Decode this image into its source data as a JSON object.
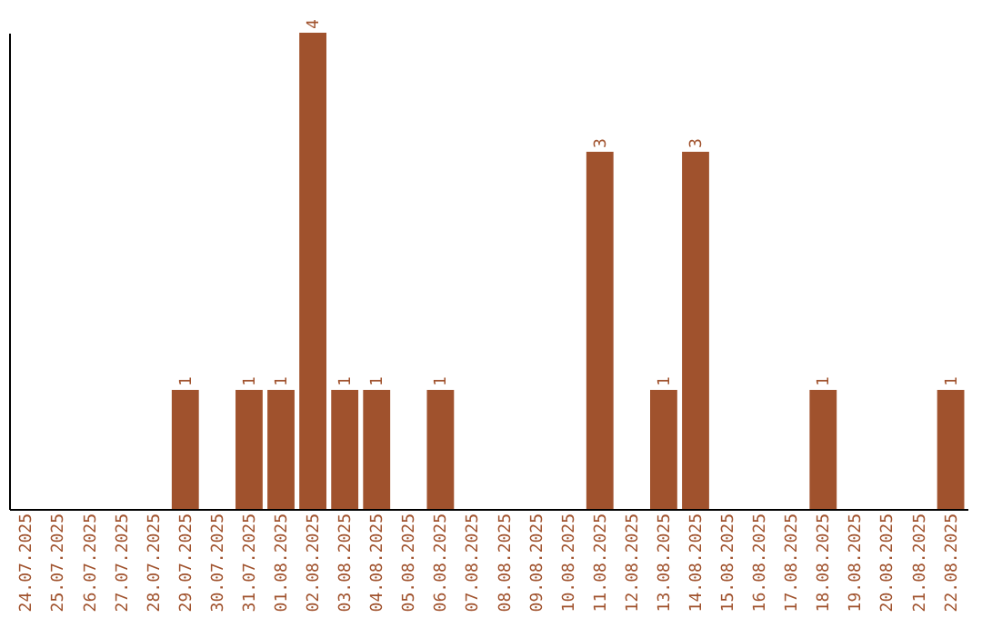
{
  "chart_data": {
    "type": "bar",
    "categories": [
      "24.07.2025",
      "25.07.2025",
      "26.07.2025",
      "27.07.2025",
      "28.07.2025",
      "29.07.2025",
      "30.07.2025",
      "31.07.2025",
      "01.08.2025",
      "02.08.2025",
      "03.08.2025",
      "04.08.2025",
      "05.08.2025",
      "06.08.2025",
      "07.08.2025",
      "08.08.2025",
      "09.08.2025",
      "10.08.2025",
      "11.08.2025",
      "12.08.2025",
      "13.08.2025",
      "14.08.2025",
      "15.08.2025",
      "16.08.2025",
      "17.08.2025",
      "18.08.2025",
      "19.08.2025",
      "20.08.2025",
      "21.08.2025",
      "22.08.2025"
    ],
    "values": [
      0,
      0,
      0,
      0,
      0,
      1,
      0,
      1,
      1,
      4,
      1,
      1,
      0,
      1,
      0,
      0,
      0,
      0,
      3,
      0,
      1,
      3,
      0,
      0,
      0,
      1,
      0,
      0,
      0,
      1
    ],
    "value_labels": [
      null,
      null,
      null,
      null,
      null,
      "1",
      null,
      "1",
      "1",
      "4",
      "1",
      "1",
      null,
      "1",
      null,
      null,
      null,
      null,
      "3",
      null,
      "1",
      "3",
      null,
      null,
      null,
      "1",
      null,
      null,
      null,
      "1"
    ],
    "color": "#a0522d",
    "grid": false,
    "tick_labels": "x"
  }
}
